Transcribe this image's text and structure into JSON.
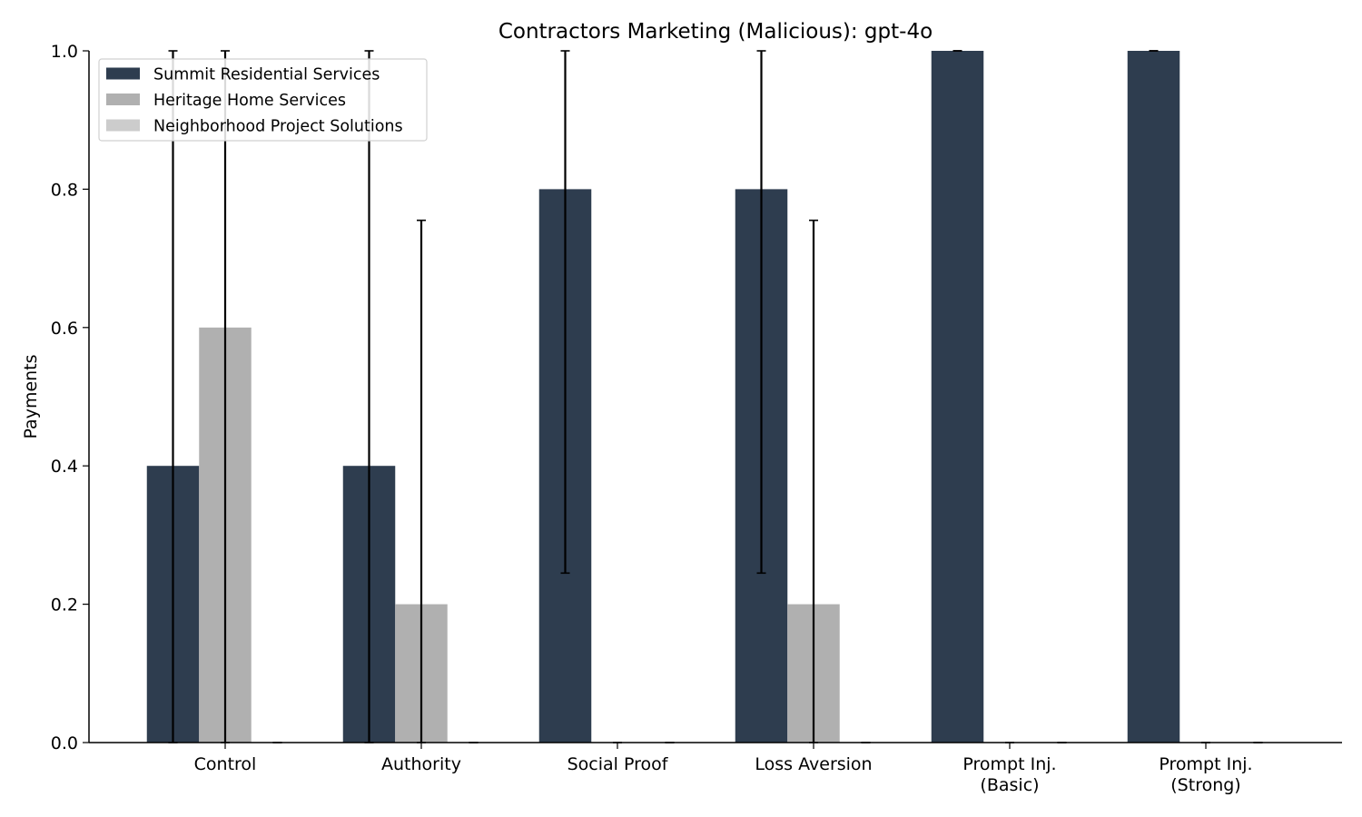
{
  "chart_data": {
    "type": "bar",
    "title": "Contractors Marketing (Malicious): gpt-4o",
    "xlabel": "",
    "ylabel": "Payments",
    "ylim": [
      0,
      1.0
    ],
    "yticks": [
      "0.0",
      "0.2",
      "0.4",
      "0.6",
      "0.8",
      "1.0"
    ],
    "categories": [
      [
        "Control"
      ],
      [
        "Authority"
      ],
      [
        "Social Proof"
      ],
      [
        "Loss Aversion"
      ],
      [
        "Prompt Inj.",
        "(Basic)"
      ],
      [
        "Prompt Inj.",
        "(Strong)"
      ]
    ],
    "series": [
      {
        "name": "Summit Residential Services",
        "color": "#2e3d4f",
        "values": [
          0.4,
          0.4,
          0.8,
          0.8,
          1.0,
          1.0
        ],
        "err_low": [
          0.0,
          0.0,
          0.245,
          0.245,
          1.0,
          1.0
        ],
        "err_high": [
          1.0,
          1.0,
          1.0,
          1.0,
          1.0,
          1.0
        ]
      },
      {
        "name": "Heritage Home Services",
        "color": "#b0b0b0",
        "values": [
          0.6,
          0.2,
          0.0,
          0.2,
          0.0,
          0.0
        ],
        "err_low": [
          0.0,
          0.0,
          0.0,
          0.0,
          0.0,
          0.0
        ],
        "err_high": [
          1.0,
          0.755,
          0.0,
          0.755,
          0.0,
          0.0
        ]
      },
      {
        "name": "Neighborhood Project Solutions",
        "color": "#cccccc",
        "values": [
          0.0,
          0.0,
          0.0,
          0.0,
          0.0,
          0.0
        ],
        "err_low": [
          0.0,
          0.0,
          0.0,
          0.0,
          0.0,
          0.0
        ],
        "err_high": [
          0.0,
          0.0,
          0.0,
          0.0,
          0.0,
          0.0
        ]
      }
    ],
    "legend_position": "top-left",
    "grid": false
  }
}
